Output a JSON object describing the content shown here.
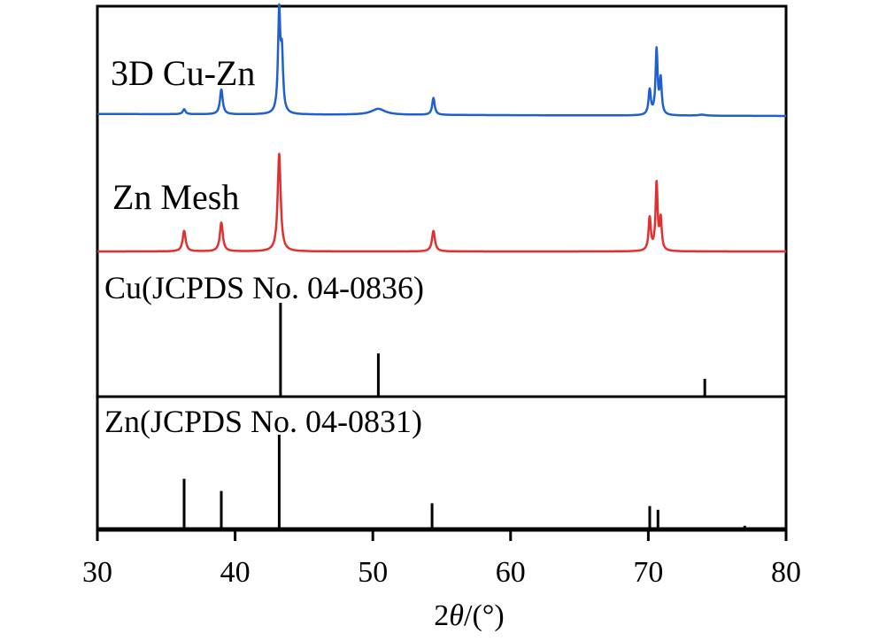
{
  "chart_data": {
    "type": "line",
    "xlabel_prefix": "2",
    "xlabel_symbol": "θ",
    "xlabel_suffix": "/(°)",
    "xlim": [
      30,
      80
    ],
    "xticks": [
      "30",
      "40",
      "50",
      "60",
      "70",
      "80"
    ],
    "series": [
      {
        "name": "3D Cu-Zn",
        "color": "#1f5fcf",
        "baseline": 0.02,
        "peaks": [
          {
            "x": 36.3,
            "h": 0.05,
            "w": 0.12
          },
          {
            "x": 39.0,
            "h": 0.25,
            "w": 0.12
          },
          {
            "x": 43.2,
            "h": 1.0,
            "w": 0.1
          },
          {
            "x": 43.4,
            "h": 0.55,
            "w": 0.1
          },
          {
            "x": 50.4,
            "h": 0.06,
            "w": 0.6
          },
          {
            "x": 54.4,
            "h": 0.17,
            "w": 0.11
          },
          {
            "x": 70.1,
            "h": 0.25,
            "w": 0.1
          },
          {
            "x": 70.6,
            "h": 0.65,
            "w": 0.09
          },
          {
            "x": 70.9,
            "h": 0.35,
            "w": 0.09
          },
          {
            "x": 73.9,
            "h": 0.01,
            "w": 0.3
          }
        ]
      },
      {
        "name": "Zn Mesh",
        "color": "#e03030",
        "baseline": 0.0,
        "peaks": [
          {
            "x": 36.3,
            "h": 0.2,
            "w": 0.13
          },
          {
            "x": 39.0,
            "h": 0.28,
            "w": 0.13
          },
          {
            "x": 43.2,
            "h": 0.95,
            "w": 0.13
          },
          {
            "x": 54.4,
            "h": 0.2,
            "w": 0.13
          },
          {
            "x": 70.1,
            "h": 0.32,
            "w": 0.1
          },
          {
            "x": 70.6,
            "h": 0.65,
            "w": 0.09
          },
          {
            "x": 70.9,
            "h": 0.3,
            "w": 0.09
          }
        ]
      }
    ],
    "references": [
      {
        "name": "Cu(JCPDS No. 04-0836)",
        "lines": [
          {
            "x": 43.3,
            "h": 1.0
          },
          {
            "x": 50.4,
            "h": 0.46
          },
          {
            "x": 74.1,
            "h": 0.19
          }
        ]
      },
      {
        "name": "Zn(JCPDS No. 04-0831)",
        "lines": [
          {
            "x": 36.3,
            "h": 0.53
          },
          {
            "x": 39.0,
            "h": 0.4
          },
          {
            "x": 43.2,
            "h": 1.0
          },
          {
            "x": 54.3,
            "h": 0.27
          },
          {
            "x": 70.1,
            "h": 0.24
          },
          {
            "x": 70.7,
            "h": 0.2
          },
          {
            "x": 77.0,
            "h": 0.03
          }
        ]
      }
    ]
  }
}
